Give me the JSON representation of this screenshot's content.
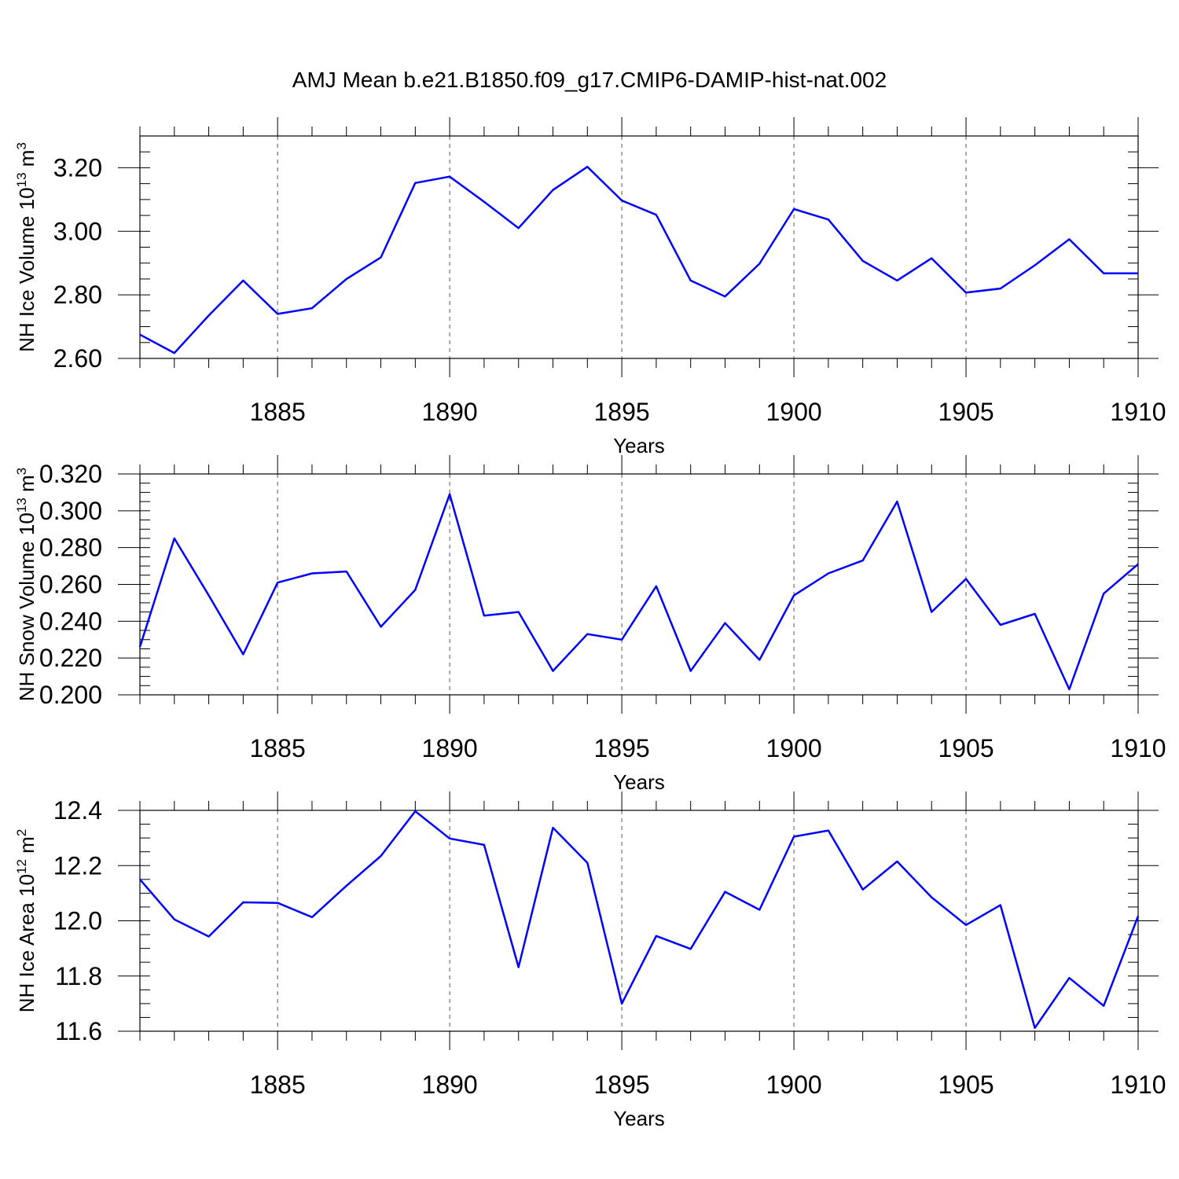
{
  "title": "AMJ Mean b.e21.B1850.f09_g17.CMIP6-DAMIP-hist-nat.002",
  "colors": {
    "series": "#0000ff",
    "axes": "#000000",
    "grid": "#555555"
  },
  "chart_data": [
    {
      "type": "line",
      "xlabel": "Years",
      "ylabel": "NH Ice Volume 10",
      "ylabel_exp": "13",
      "ylabel_unit": " m",
      "ylabel_unit_exp": "3",
      "xlim": [
        1881,
        1910
      ],
      "ylim": [
        2.6,
        3.3
      ],
      "yticks": [
        2.6,
        2.8,
        3.0,
        3.2
      ],
      "ytick_labels": [
        "2.60",
        "2.80",
        "3.00",
        "3.20"
      ],
      "yminor_step": 0.05,
      "xticks": [
        1885,
        1890,
        1895,
        1900,
        1905,
        1910
      ],
      "grid": "dashed vertical at major x ticks",
      "x": [
        1881,
        1882,
        1883,
        1884,
        1885,
        1886,
        1887,
        1888,
        1889,
        1890,
        1891,
        1892,
        1893,
        1894,
        1895,
        1896,
        1897,
        1898,
        1899,
        1900,
        1901,
        1902,
        1903,
        1904,
        1905,
        1906,
        1907,
        1908,
        1909,
        1910
      ],
      "values": [
        2.675,
        2.617,
        2.735,
        2.845,
        2.74,
        2.758,
        2.85,
        2.918,
        3.152,
        3.172,
        3.093,
        3.01,
        3.13,
        3.203,
        3.097,
        3.052,
        2.845,
        2.795,
        2.898,
        3.07,
        3.037,
        2.907,
        2.845,
        2.915,
        2.807,
        2.82,
        2.893,
        2.975,
        2.868,
        2.868
      ]
    },
    {
      "type": "line",
      "xlabel": "Years",
      "ylabel": "NH Snow Volume 10",
      "ylabel_exp": "13",
      "ylabel_unit": " m",
      "ylabel_unit_exp": "3",
      "xlim": [
        1881,
        1910
      ],
      "ylim": [
        0.2,
        0.32
      ],
      "yticks": [
        0.2,
        0.22,
        0.24,
        0.26,
        0.28,
        0.3,
        0.32
      ],
      "ytick_labels": [
        "0.200",
        "0.220",
        "0.240",
        "0.260",
        "0.280",
        "0.300",
        "0.320"
      ],
      "yminor_step": 0.005,
      "xticks": [
        1885,
        1890,
        1895,
        1900,
        1905,
        1910
      ],
      "grid": "dashed vertical at major x ticks",
      "x": [
        1881,
        1882,
        1883,
        1884,
        1885,
        1886,
        1887,
        1888,
        1889,
        1890,
        1891,
        1892,
        1893,
        1894,
        1895,
        1896,
        1897,
        1898,
        1899,
        1900,
        1901,
        1902,
        1903,
        1904,
        1905,
        1906,
        1907,
        1908,
        1909,
        1910
      ],
      "values": [
        0.226,
        0.285,
        0.254,
        0.222,
        0.261,
        0.266,
        0.267,
        0.237,
        0.257,
        0.309,
        0.243,
        0.245,
        0.213,
        0.233,
        0.23,
        0.259,
        0.213,
        0.239,
        0.219,
        0.254,
        0.266,
        0.273,
        0.305,
        0.245,
        0.263,
        0.238,
        0.244,
        0.203,
        0.255,
        0.271
      ]
    },
    {
      "type": "line",
      "xlabel": "Years",
      "ylabel": "NH Ice Area 10",
      "ylabel_exp": "12",
      "ylabel_unit": " m",
      "ylabel_unit_exp": "2",
      "xlim": [
        1881,
        1910
      ],
      "ylim": [
        11.6,
        12.4
      ],
      "yticks": [
        11.6,
        11.8,
        12.0,
        12.2,
        12.4
      ],
      "ytick_labels": [
        "11.6",
        "11.8",
        "12.0",
        "12.2",
        "12.4"
      ],
      "yminor_step": 0.05,
      "xticks": [
        1885,
        1890,
        1895,
        1900,
        1905,
        1910
      ],
      "grid": "dashed vertical at major x ticks",
      "x": [
        1881,
        1882,
        1883,
        1884,
        1885,
        1886,
        1887,
        1888,
        1889,
        1890,
        1891,
        1892,
        1893,
        1894,
        1895,
        1896,
        1897,
        1898,
        1899,
        1900,
        1901,
        1902,
        1903,
        1904,
        1905,
        1906,
        1907,
        1908,
        1909,
        1910
      ],
      "values": [
        12.15,
        12.005,
        11.943,
        12.067,
        12.065,
        12.013,
        12.127,
        12.235,
        12.397,
        12.298,
        12.275,
        11.832,
        12.337,
        12.21,
        11.7,
        11.945,
        11.898,
        12.105,
        12.04,
        12.305,
        12.327,
        12.113,
        12.215,
        12.085,
        11.985,
        12.057,
        11.612,
        11.793,
        11.692,
        12.017
      ]
    }
  ]
}
